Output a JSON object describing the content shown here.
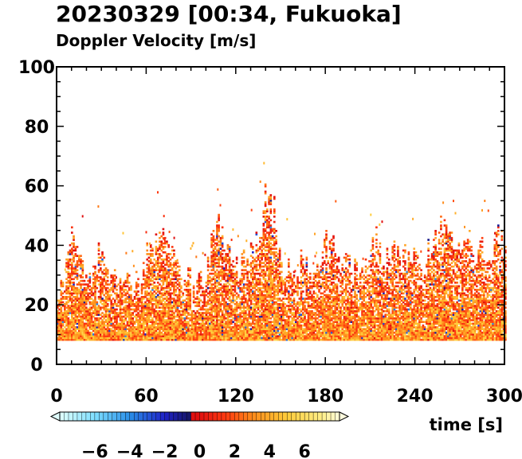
{
  "chart_data": {
    "type": "heatmap",
    "title": "20230329 [00:34, Fukuoka]",
    "subtitle": "Doppler Velocity [m/s]",
    "xlabel": "time [s]",
    "ylabel": "",
    "xlim": [
      0,
      300
    ],
    "ylim": [
      0,
      100
    ],
    "x_ticks": [
      0,
      60,
      120,
      180,
      240,
      300
    ],
    "y_ticks": [
      0,
      20,
      40,
      60,
      80,
      100
    ],
    "grid": false,
    "data_floor": 8,
    "echo_top_profile": {
      "x": [
        0,
        5,
        10,
        15,
        20,
        25,
        30,
        35,
        40,
        45,
        50,
        55,
        60,
        65,
        70,
        75,
        80,
        85,
        90,
        95,
        100,
        105,
        110,
        115,
        120,
        125,
        130,
        135,
        140,
        145,
        150,
        155,
        160,
        165,
        170,
        175,
        180,
        185,
        190,
        195,
        200,
        205,
        210,
        215,
        220,
        225,
        230,
        235,
        240,
        245,
        250,
        255,
        260,
        265,
        270,
        275,
        280,
        285,
        290,
        295,
        300
      ],
      "y": [
        24,
        30,
        43,
        40,
        28,
        33,
        42,
        30,
        28,
        30,
        28,
        27,
        38,
        40,
        44,
        38,
        30,
        32,
        26,
        28,
        30,
        46,
        45,
        40,
        32,
        34,
        38,
        44,
        58,
        52,
        34,
        34,
        30,
        36,
        32,
        35,
        42,
        40,
        32,
        34,
        30,
        32,
        40,
        42,
        36,
        38,
        34,
        36,
        34,
        32,
        40,
        45,
        46,
        40,
        42,
        44,
        36,
        40,
        34,
        45,
        38
      ]
    },
    "colorbar": {
      "label": "",
      "range": [
        -8,
        8
      ],
      "ticks": [
        -6,
        -4,
        -2,
        0,
        2,
        4,
        6
      ],
      "tick_labels": [
        "−6",
        "−4",
        "−2",
        "0",
        "2",
        "4",
        "6"
      ],
      "extend": "both",
      "stops": [
        {
          "value": -8,
          "color": "#e0ffff"
        },
        {
          "value": -6,
          "color": "#7fdfff"
        },
        {
          "value": -4,
          "color": "#2a8fe8"
        },
        {
          "value": -2,
          "color": "#1f22c8"
        },
        {
          "value": -0.5,
          "color": "#151560"
        },
        {
          "value": 0,
          "color": "#e01010"
        },
        {
          "value": 1.5,
          "color": "#ff3a10"
        },
        {
          "value": 3,
          "color": "#ff8a1a"
        },
        {
          "value": 5,
          "color": "#ffcc3a"
        },
        {
          "value": 7,
          "color": "#ffee88"
        },
        {
          "value": 8,
          "color": "#fffbdd"
        }
      ]
    }
  }
}
